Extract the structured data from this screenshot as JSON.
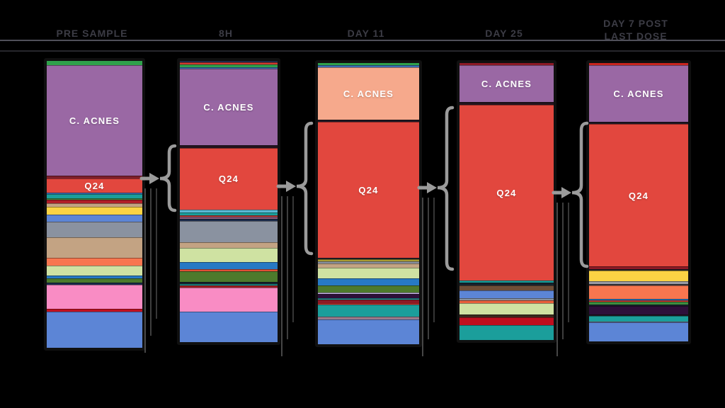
{
  "colors": {
    "background": "#000000",
    "header_text": "#3C3C45",
    "rule_top": "#50505A",
    "rule_bottom": "#26262C",
    "annotation": "#9B9B9B",
    "bar_border": "#101010",
    "label_text": "#FFFFFF"
  },
  "headers": [
    "PRE SAMPLE",
    "8H",
    "DAY 11",
    "DAY 25",
    "DAY 7 POST LAST DOSE"
  ],
  "chart_data": {
    "type": "bar",
    "subtype": "100%-stacked-vertical",
    "title": "",
    "xlabel": "",
    "ylabel": "",
    "unit": "relative abundance % (estimated from segment heights)",
    "legend_position": "none",
    "grid": false,
    "labeled_taxa": [
      "C. ACNES",
      "Q24"
    ],
    "categories": [
      "PRE SAMPLE",
      "8H",
      "DAY 11",
      "DAY 25",
      "DAY 7 POST LAST DOSE"
    ],
    "bars": [
      {
        "category": "PRE SAMPLE",
        "segments": [
          {
            "color": "#2FA14B",
            "pct": 1.5
          },
          {
            "label": "C. ACNES",
            "color": "#9A68A4",
            "pct": 38.4
          },
          {
            "color": "#7E1E2A",
            "pct": 1.0
          },
          {
            "label": "Q24",
            "color": "#E2473E",
            "pct": 5.1
          },
          {
            "color": "#3A6EB5",
            "pct": 0.5
          },
          {
            "color": "#1B9E9B",
            "pct": 1.3
          },
          {
            "color": "#3D8C40",
            "pct": 0.5
          },
          {
            "color": "#B01E28",
            "pct": 1.3
          },
          {
            "color": "#C3A383",
            "pct": 1.3
          },
          {
            "color": "#FBD344",
            "pct": 2.8
          },
          {
            "color": "#5C85D6",
            "pct": 2.3
          },
          {
            "color": "#8A92A0",
            "pct": 5.6
          },
          {
            "color": "#C3A383",
            "pct": 7.1
          },
          {
            "color": "#F8764F",
            "pct": 2.8
          },
          {
            "color": "#CFE2A2",
            "pct": 3.3
          },
          {
            "color": "#2779C4",
            "pct": 1.0
          },
          {
            "color": "#4D7A2C",
            "pct": 1.5
          },
          {
            "color": "#1A2B4A",
            "pct": 0.8
          },
          {
            "color": "#F98CC4",
            "pct": 8.3
          },
          {
            "color": "#C00F1E",
            "pct": 1.0
          },
          {
            "color": "#5C85D6",
            "pct": 12.9
          }
        ]
      },
      {
        "category": "8H",
        "segments": [
          {
            "color": "#1A2B4A",
            "pct": 0.5
          },
          {
            "color": "#D03A30",
            "pct": 0.8
          },
          {
            "color": "#2FA14B",
            "pct": 1.0
          },
          {
            "color": "#3A6EB5",
            "pct": 0.5
          },
          {
            "label": "C. ACNES",
            "color": "#9A68A4",
            "pct": 27.2
          },
          {
            "color": "#23141E",
            "pct": 1.0
          },
          {
            "label": "Q24",
            "color": "#E2473E",
            "pct": 21.8
          },
          {
            "color": "#5BB8D4",
            "pct": 1.0
          },
          {
            "color": "#1B9E9B",
            "pct": 1.0
          },
          {
            "color": "#C23A35",
            "pct": 0.5
          },
          {
            "color": "#8A5A7A",
            "pct": 0.8
          },
          {
            "color": "#1A2B4A",
            "pct": 0.8
          },
          {
            "color": "#8A92A0",
            "pct": 7.7
          },
          {
            "color": "#C3A383",
            "pct": 1.8
          },
          {
            "color": "#CFE2A2",
            "pct": 5.1
          },
          {
            "color": "#2779C4",
            "pct": 2.6
          },
          {
            "color": "#E05038",
            "pct": 0.8
          },
          {
            "color": "#4D7A2C",
            "pct": 3.6
          },
          {
            "color": "#16222E",
            "pct": 0.8
          },
          {
            "color": "#1B9E9B",
            "pct": 0.5
          },
          {
            "color": "#9E1B20",
            "pct": 0.8
          },
          {
            "color": "#F98CC4",
            "pct": 8.5
          },
          {
            "color": "#5C85D6",
            "pct": 11.0
          }
        ]
      },
      {
        "category": "DAY 11",
        "segments": [
          {
            "color": "#2FA14B",
            "pct": 0.8
          },
          {
            "color": "#3A6EB5",
            "pct": 0.8
          },
          {
            "label": "C. ACNES",
            "color": "#F6A98C",
            "pct": 18.5
          },
          {
            "color": "#1F1722",
            "pct": 0.8
          },
          {
            "label": "Q24",
            "color": "#E2473E",
            "pct": 48.3
          },
          {
            "color": "#23232B",
            "pct": 0.5
          },
          {
            "color": "#A89B32",
            "pct": 0.8
          },
          {
            "color": "#8A92A0",
            "pct": 0.8
          },
          {
            "color": "#C3A383",
            "pct": 1.5
          },
          {
            "color": "#CFE2A2",
            "pct": 3.9
          },
          {
            "color": "#2779C4",
            "pct": 2.3
          },
          {
            "color": "#4D7A2C",
            "pct": 2.6
          },
          {
            "color": "#C8B8E8",
            "pct": 0.5
          },
          {
            "color": "#2E0F3A",
            "pct": 1.5
          },
          {
            "color": "#1B9E9B",
            "pct": 0.5
          },
          {
            "color": "#8C1A26",
            "pct": 1.3
          },
          {
            "color": "#D8332C",
            "pct": 0.5
          },
          {
            "color": "#1B9E9B",
            "pct": 4.4
          },
          {
            "color": "#9A7B8A",
            "pct": 0.8
          },
          {
            "color": "#5C85D6",
            "pct": 9.0
          }
        ]
      },
      {
        "category": "DAY 25",
        "segments": [
          {
            "color": "#8C1A26",
            "pct": 0.8
          },
          {
            "label": "C. ACNES",
            "color": "#9A68A4",
            "pct": 13.3
          },
          {
            "color": "#23141E",
            "pct": 1.0
          },
          {
            "label": "Q24",
            "color": "#E2473E",
            "pct": 63.4
          },
          {
            "color": "#1B9E9B",
            "pct": 0.8
          },
          {
            "color": "#16222E",
            "pct": 1.0
          },
          {
            "color": "#6F4E37",
            "pct": 1.8
          },
          {
            "color": "#5C85D6",
            "pct": 2.9
          },
          {
            "color": "#8A92A0",
            "pct": 0.8
          },
          {
            "color": "#E8603C",
            "pct": 0.8
          },
          {
            "color": "#CFE2A2",
            "pct": 4.2
          },
          {
            "color": "#3A2A1E",
            "pct": 1.0
          },
          {
            "color": "#C00F1E",
            "pct": 2.9
          },
          {
            "color": "#1B9E9B",
            "pct": 5.2
          }
        ]
      },
      {
        "category": "DAY 7 POST LAST DOSE",
        "segments": [
          {
            "color": "#C8241E",
            "pct": 0.8
          },
          {
            "label": "C. ACNES",
            "color": "#9A68A4",
            "pct": 20.3
          },
          {
            "color": "#1F1722",
            "pct": 0.8
          },
          {
            "label": "Q24",
            "color": "#E2473E",
            "pct": 51.2
          },
          {
            "color": "#8C1A26",
            "pct": 1.0
          },
          {
            "color": "#23232B",
            "pct": 0.5
          },
          {
            "color": "#FBD344",
            "pct": 3.9
          },
          {
            "color": "#9A9AA2",
            "pct": 1.0
          },
          {
            "color": "#3A3A40",
            "pct": 0.5
          },
          {
            "color": "#F8764F",
            "pct": 4.7
          },
          {
            "color": "#2779C4",
            "pct": 0.5
          },
          {
            "color": "#D8332C",
            "pct": 0.5
          },
          {
            "color": "#3D8C40",
            "pct": 1.0
          },
          {
            "color": "#16222E",
            "pct": 0.5
          },
          {
            "color": "#2E0F3A",
            "pct": 3.1
          },
          {
            "color": "#1F1722",
            "pct": 0.5
          },
          {
            "color": "#1B9E9B",
            "pct": 2.1
          },
          {
            "color": "#9A7B8A",
            "pct": 0.3
          },
          {
            "color": "#5C85D6",
            "pct": 6.8
          }
        ]
      }
    ]
  }
}
